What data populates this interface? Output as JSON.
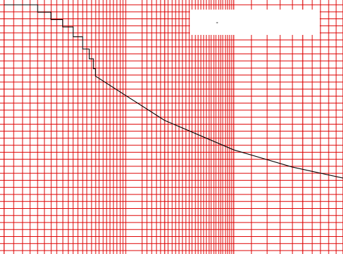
{
  "chart_data": {
    "type": "line",
    "title": "",
    "xlabel": "",
    "ylabel": "",
    "x_scale": "log",
    "grid": true,
    "grid_color": "#dd0000",
    "background": "#ffffff",
    "line_color": "#000000",
    "legend": {
      "position": "top-right",
      "label": "-"
    },
    "series": [
      {
        "name": "",
        "points": [
          [
            1.0,
            100.0
          ],
          [
            1.4,
            100.0
          ],
          [
            1.4,
            97.0
          ],
          [
            1.6,
            97.0
          ],
          [
            1.6,
            94.0
          ],
          [
            1.8,
            94.0
          ],
          [
            1.8,
            91.0
          ],
          [
            2.0,
            91.0
          ],
          [
            2.0,
            87.0
          ],
          [
            2.2,
            87.0
          ],
          [
            2.2,
            82.0
          ],
          [
            2.35,
            82.0
          ],
          [
            2.35,
            78.0
          ],
          [
            2.45,
            78.0
          ],
          [
            2.45,
            74.0
          ],
          [
            2.5,
            74.0
          ],
          [
            2.5,
            71.0
          ],
          [
            5.0,
            53.0
          ],
          [
            10.0,
            41.0
          ],
          [
            18.0,
            34.0
          ],
          [
            30.0,
            29.5
          ]
        ]
      }
    ]
  }
}
